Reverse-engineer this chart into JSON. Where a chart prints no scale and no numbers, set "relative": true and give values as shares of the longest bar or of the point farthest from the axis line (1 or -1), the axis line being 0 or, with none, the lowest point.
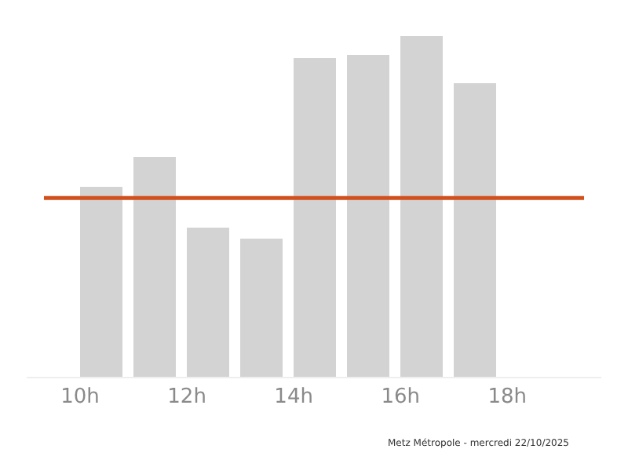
{
  "chart_data": {
    "type": "bar",
    "relative": true,
    "x": [
      10.4,
      11.4,
      12.4,
      13.4,
      14.4,
      15.4,
      16.4,
      17.4
    ],
    "values": [
      0.558,
      0.645,
      0.438,
      0.406,
      0.935,
      0.945,
      1,
      0.862
    ],
    "color": "#d3d3d3",
    "xlim": [
      9.0,
      19.76
    ],
    "xticks": [
      {
        "value": 10,
        "label": "10h"
      },
      {
        "value": 12,
        "label": "12h"
      },
      {
        "value": 14,
        "label": "14h"
      },
      {
        "value": 16,
        "label": "16h"
      },
      {
        "value": 18,
        "label": "18h"
      }
    ],
    "ref_lines": [
      {
        "axis": "y",
        "value": 0.525,
        "label": null,
        "color": "#d2501e"
      }
    ],
    "annotations": [
      "Metz Métropole - mercredi 22/10/2025"
    ]
  }
}
